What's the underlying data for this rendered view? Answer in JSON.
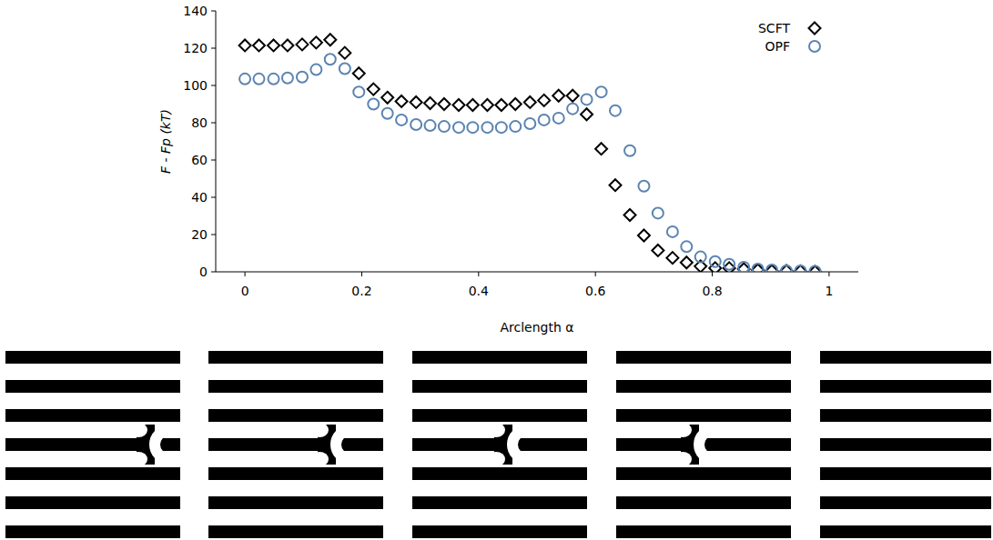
{
  "chart_data": {
    "type": "scatter",
    "x_label": "Arclength α",
    "y_label": "F - Fp (kT)",
    "xlim": [
      -0.05,
      1.05
    ],
    "xticks": [
      0,
      0.2,
      0.4,
      0.6,
      0.8,
      1
    ],
    "ylim": [
      0,
      140
    ],
    "yticks": [
      0,
      20,
      40,
      60,
      80,
      100,
      120,
      140
    ],
    "legend": "upper right",
    "grid": false,
    "x": [
      0,
      0.024,
      0.049,
      0.073,
      0.098,
      0.122,
      0.146,
      0.171,
      0.195,
      0.22,
      0.244,
      0.268,
      0.293,
      0.317,
      0.341,
      0.366,
      0.39,
      0.415,
      0.439,
      0.463,
      0.488,
      0.512,
      0.537,
      0.561,
      0.585,
      0.61,
      0.634,
      0.659,
      0.683,
      0.707,
      0.732,
      0.756,
      0.78,
      0.805,
      0.829,
      0.854,
      0.878,
      0.902,
      0.927,
      0.951,
      0.976
    ],
    "series": [
      {
        "name": "SCFT",
        "color": "#000000",
        "marker": "diamond",
        "values": [
          121.5,
          121.5,
          121.5,
          121.5,
          122,
          123,
          124.5,
          117.5,
          106.5,
          98,
          93.5,
          91.5,
          91,
          90.5,
          90,
          89.5,
          89.5,
          89.5,
          89.5,
          90,
          91,
          92,
          94.5,
          94.5,
          84.5,
          66,
          46.5,
          30.5,
          19.5,
          11.5,
          7.5,
          5,
          3,
          2,
          2,
          1.5,
          1,
          0.5,
          0.5,
          0.3,
          0
        ]
      },
      {
        "name": "OPF",
        "color": "#5b84b1",
        "marker": "circle",
        "values": [
          103.5,
          103.5,
          103.5,
          104,
          104.5,
          108.5,
          114,
          109,
          96.5,
          90,
          85,
          81.5,
          79,
          78.5,
          78,
          77.5,
          77.5,
          77.5,
          77.5,
          78,
          79.5,
          81.5,
          82.5,
          87.5,
          92.5,
          96.5,
          86.5,
          65,
          46,
          31.5,
          21.5,
          13.5,
          8,
          5.5,
          4,
          2.5,
          1.5,
          1,
          0.5,
          0.5,
          0.3
        ]
      }
    ]
  }
}
